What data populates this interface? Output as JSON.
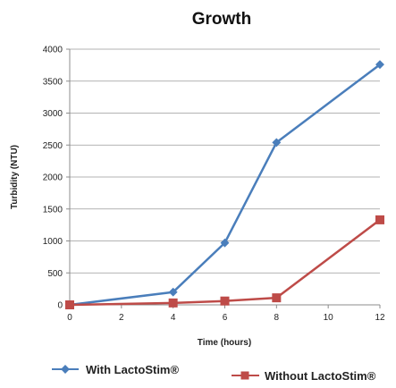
{
  "chart_data": {
    "type": "line",
    "title": "Growth",
    "xlabel": "Time (hours)",
    "ylabel": "Turbidity (NTU)",
    "xlim": [
      0,
      12
    ],
    "ylim": [
      0,
      4000
    ],
    "x_ticks": [
      0,
      2,
      4,
      6,
      8,
      10,
      12
    ],
    "y_ticks": [
      0,
      500,
      1000,
      1500,
      2000,
      2500,
      3000,
      3500,
      4000
    ],
    "grid": "horizontal",
    "legend_position": "bottom",
    "series": [
      {
        "name": "With LactoStim®",
        "color": "#4a7ebb",
        "marker": "diamond",
        "x": [
          0,
          4,
          6,
          8,
          12
        ],
        "y": [
          0,
          200,
          970,
          2540,
          3760
        ]
      },
      {
        "name": "Without LactoStim®",
        "color": "#be4b48",
        "marker": "square",
        "x": [
          0,
          4,
          6,
          8,
          12
        ],
        "y": [
          0,
          30,
          60,
          110,
          1330
        ]
      }
    ]
  }
}
